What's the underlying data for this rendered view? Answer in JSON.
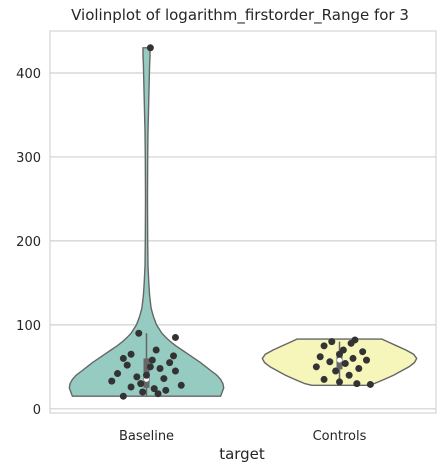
{
  "chart_data": {
    "type": "violin",
    "title": "Violinplot of logarithm_firstorder_Range for 3",
    "xlabel": "target",
    "ylabel": "",
    "categories": [
      "Baseline",
      "Controls"
    ],
    "ylim": [
      -5,
      450
    ],
    "yticks": [
      0,
      100,
      200,
      300,
      400
    ],
    "grid": true,
    "colors": {
      "Baseline": "#96cbc1",
      "Controls": "#f6f6bb",
      "outline": "#666666",
      "points": "#333333",
      "grid": "#d0d0d0",
      "frame": "#cccccc"
    },
    "violins": [
      {
        "category": "Baseline",
        "profile": [
          [
            15,
            0.96
          ],
          [
            20,
            0.98
          ],
          [
            25,
            1.0
          ],
          [
            30,
            0.99
          ],
          [
            35,
            0.96
          ],
          [
            40,
            0.91
          ],
          [
            45,
            0.84
          ],
          [
            50,
            0.77
          ],
          [
            55,
            0.7
          ],
          [
            60,
            0.62
          ],
          [
            65,
            0.54
          ],
          [
            70,
            0.46
          ],
          [
            75,
            0.38
          ],
          [
            80,
            0.31
          ],
          [
            85,
            0.25
          ],
          [
            90,
            0.2
          ],
          [
            100,
            0.13
          ],
          [
            110,
            0.09
          ],
          [
            120,
            0.06
          ],
          [
            135,
            0.04
          ],
          [
            150,
            0.03
          ],
          [
            170,
            0.02
          ],
          [
            200,
            0.015
          ],
          [
            250,
            0.013
          ],
          [
            300,
            0.015
          ],
          [
            330,
            0.02
          ],
          [
            350,
            0.025
          ],
          [
            370,
            0.03
          ],
          [
            390,
            0.035
          ],
          [
            410,
            0.04
          ],
          [
            420,
            0.045
          ],
          [
            430,
            0.045
          ]
        ],
        "box": {
          "q1": 25,
          "median": 35,
          "q3": 60,
          "whisker_low": 15,
          "whisker_high": 90
        },
        "points": [
          [
            0.02,
            430
          ],
          [
            -0.04,
            90
          ],
          [
            0.15,
            85
          ],
          [
            0.05,
            70
          ],
          [
            0.14,
            63
          ],
          [
            -0.12,
            60
          ],
          [
            -0.08,
            65
          ],
          [
            0.03,
            58
          ],
          [
            0.12,
            55
          ],
          [
            -0.1,
            52
          ],
          [
            0.02,
            50
          ],
          [
            0.07,
            48
          ],
          [
            0.15,
            45
          ],
          [
            -0.15,
            42
          ],
          [
            0.0,
            40
          ],
          [
            -0.05,
            38
          ],
          [
            0.09,
            36
          ],
          [
            -0.18,
            33
          ],
          [
            -0.03,
            30
          ],
          [
            0.18,
            28
          ],
          [
            -0.08,
            26
          ],
          [
            0.04,
            24
          ],
          [
            0.1,
            22
          ],
          [
            -0.02,
            20
          ],
          [
            0.06,
            18
          ],
          [
            -0.12,
            15
          ]
        ]
      },
      {
        "category": "Controls",
        "profile": [
          [
            28,
            0.36
          ],
          [
            30,
            0.45
          ],
          [
            35,
            0.58
          ],
          [
            40,
            0.7
          ],
          [
            45,
            0.8
          ],
          [
            50,
            0.9
          ],
          [
            55,
            0.97
          ],
          [
            60,
            1.0
          ],
          [
            65,
            0.96
          ],
          [
            70,
            0.86
          ],
          [
            75,
            0.74
          ],
          [
            80,
            0.62
          ],
          [
            83,
            0.55
          ]
        ],
        "box": {
          "q1": 47,
          "median": 58,
          "q3": 68,
          "whisker_low": 30,
          "whisker_high": 80
        },
        "points": [
          [
            0.08,
            82
          ],
          [
            -0.04,
            80
          ],
          [
            0.06,
            78
          ],
          [
            -0.08,
            75
          ],
          [
            0.02,
            70
          ],
          [
            0.12,
            68
          ],
          [
            0.0,
            65
          ],
          [
            -0.1,
            62
          ],
          [
            0.07,
            60
          ],
          [
            0.14,
            58
          ],
          [
            -0.05,
            56
          ],
          [
            0.03,
            54
          ],
          [
            -0.12,
            50
          ],
          [
            0.1,
            48
          ],
          [
            -0.02,
            45
          ],
          [
            0.05,
            40
          ],
          [
            -0.08,
            35
          ],
          [
            0.0,
            32
          ],
          [
            0.09,
            30
          ],
          [
            0.16,
            29
          ]
        ]
      }
    ]
  }
}
